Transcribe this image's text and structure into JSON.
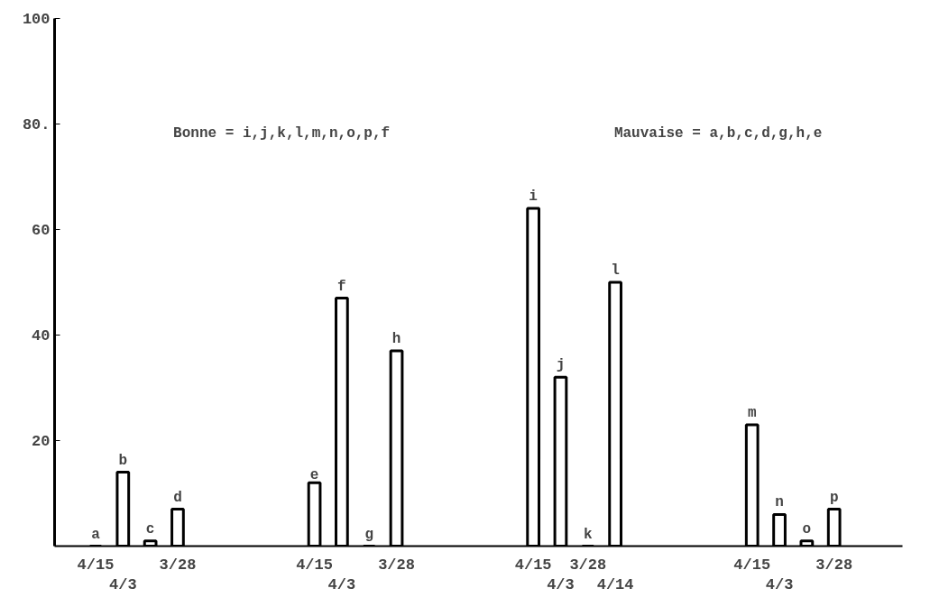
{
  "chart_data": {
    "type": "bar",
    "categories": [
      "4/15",
      "4/3",
      null,
      "3/28",
      null,
      null,
      null,
      null,
      "4/15",
      "4/3",
      null,
      "3/28",
      null,
      null,
      null,
      null,
      "4/15",
      "4/3",
      "3/28",
      "4/14",
      null,
      null,
      null,
      null,
      "4/15",
      "4/3",
      null,
      "3/28"
    ],
    "values": [
      0,
      14,
      1,
      7,
      null,
      null,
      null,
      null,
      12,
      47,
      0,
      37,
      null,
      null,
      null,
      null,
      64,
      32,
      0,
      50,
      null,
      null,
      null,
      null,
      23,
      6,
      1,
      7
    ],
    "value_labels": [
      "a",
      "b",
      "c",
      "d",
      null,
      null,
      null,
      null,
      "e",
      "f",
      "g",
      "h",
      null,
      null,
      null,
      null,
      "i",
      "j",
      "k",
      "l",
      null,
      null,
      null,
      null,
      "m",
      "n",
      "o",
      "p"
    ],
    "color": "#000000",
    "ylim": [
      0,
      100
    ],
    "yticks": [
      20,
      40,
      60,
      {
        "value": 80,
        "label": "80."
      },
      100
    ],
    "grid": false,
    "annotations": [
      "Bonne = i,j,k,l,m,n,o,p,f",
      "Mauvaise = a,b,c,d,g,h,e"
    ]
  }
}
